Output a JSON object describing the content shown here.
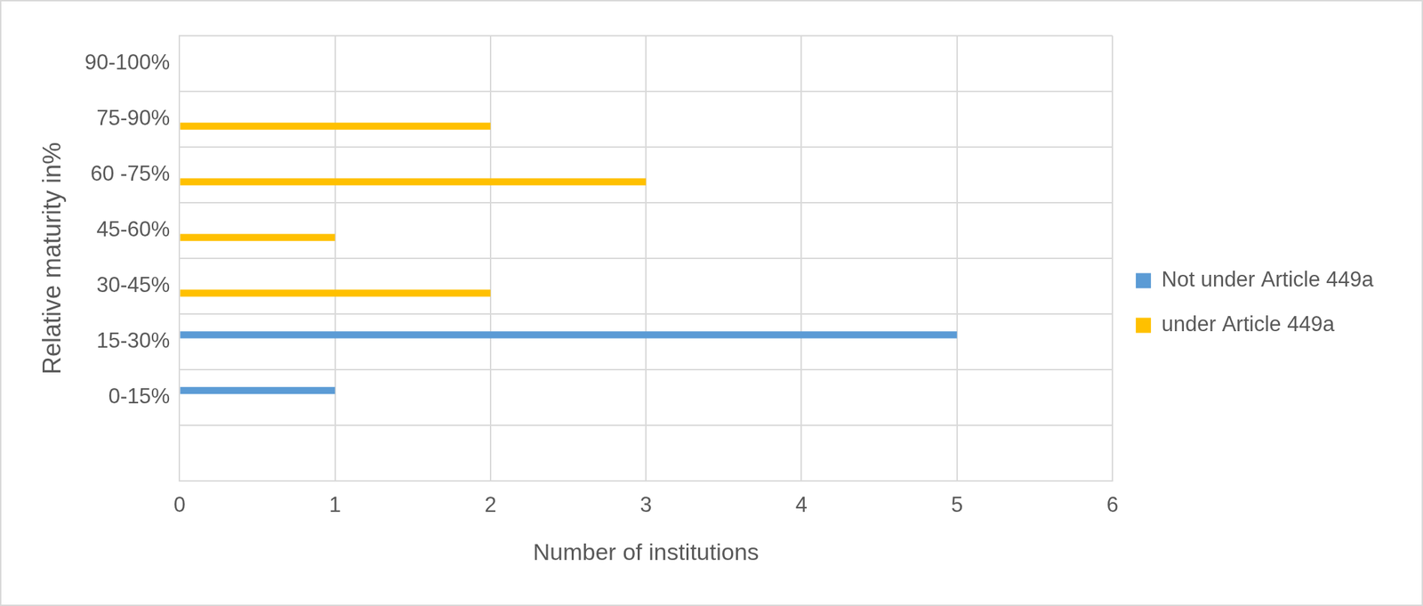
{
  "chart_data": {
    "type": "bar",
    "orientation": "horizontal",
    "x_label": "Number of institutions",
    "y_label": "Relative maturity in%",
    "categories": [
      null,
      "0-15%",
      "15-30%",
      "30-45%",
      "45-60%",
      "60 -75%",
      "75-90%",
      "90-100%"
    ],
    "series": [
      {
        "name": "Not under Article 449a",
        "color": "#5b9bd5",
        "values": [
          0,
          1,
          5,
          0,
          0,
          0,
          0,
          0
        ]
      },
      {
        "name": "under Article 449a",
        "color": "#ffc000",
        "values": [
          0,
          0,
          0,
          2,
          1,
          3,
          2,
          0
        ]
      }
    ],
    "xlim": [
      0,
      6
    ],
    "xticks": [
      0,
      1,
      2,
      3,
      4,
      5,
      6
    ],
    "grid": true,
    "legend": "right"
  }
}
